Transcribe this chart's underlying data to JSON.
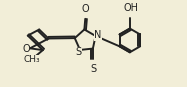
{
  "bg_color": "#f2eed8",
  "line_color": "#222222",
  "line_width": 1.4,
  "font_size": 7.0,
  "fig_size": [
    1.87,
    0.87
  ],
  "dpi": 100,
  "xlim": [
    0,
    10
  ],
  "ylim": [
    0,
    4.65
  ]
}
